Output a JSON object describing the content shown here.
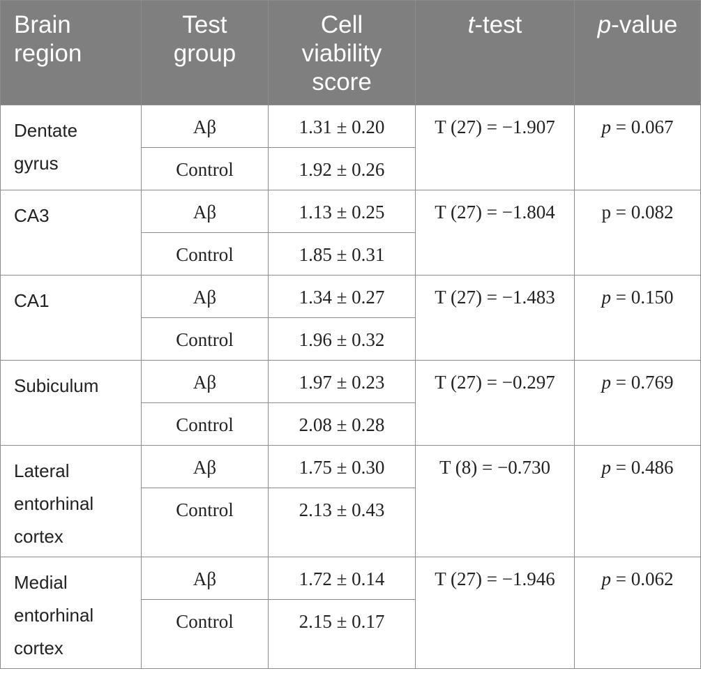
{
  "header": {
    "brain_region": [
      "Brain",
      "region"
    ],
    "test_group": [
      "Test",
      "group"
    ],
    "cell_viability": [
      "Cell",
      "viability",
      "score"
    ],
    "ttest_italic": "t",
    "ttest_rest": "-test",
    "pvalue_italic": "p",
    "pvalue_rest": "-value"
  },
  "rows": [
    {
      "region": [
        "Dentate",
        "gyrus"
      ],
      "ab_label": "Aβ",
      "ab_score": "1.31 ± 0.20",
      "control_label": "Control",
      "control_score": "1.92 ± 0.26",
      "ttest": "T (27) = −1.907",
      "p_symbol": "p",
      "p_rest": " = 0.067"
    },
    {
      "region": [
        "CA3"
      ],
      "ab_label": "Aβ",
      "ab_score": "1.13 ± 0.25",
      "control_label": "Control",
      "control_score": "1.85 ± 0.31",
      "ttest": "T (27) = −1.804",
      "p_symbol": "p",
      "p_rest": " = 0.082"
    },
    {
      "region": [
        "CA1"
      ],
      "ab_label": "Aβ",
      "ab_score": "1.34 ± 0.27",
      "control_label": "Control",
      "control_score": "1.96 ± 0.32",
      "ttest": "T (27) = −1.483",
      "p_symbol": "p",
      "p_rest": " = 0.150"
    },
    {
      "region": [
        "Subiculum"
      ],
      "ab_label": "Aβ",
      "ab_score": "1.97 ± 0.23",
      "control_label": "Control",
      "control_score": "2.08 ± 0.28",
      "ttest": "T (27) = −0.297",
      "p_symbol": "p",
      "p_rest": " = 0.769"
    },
    {
      "region": [
        "Lateral",
        "entorhinal",
        "cortex"
      ],
      "ab_label": "Aβ",
      "ab_score": "1.75 ± 0.30",
      "control_label": "Control",
      "control_score": "2.13 ± 0.43",
      "ttest": "T (8) = −0.730",
      "p_symbol": "p",
      "p_rest": " = 0.486"
    },
    {
      "region": [
        "Medial",
        "entorhinal",
        "cortex"
      ],
      "ab_label": "Aβ",
      "ab_score": "1.72 ± 0.14",
      "control_label": "Control",
      "control_score": "2.15 ± 0.17",
      "ttest": "T (27) = −1.946",
      "p_symbol": "p",
      "p_rest": " = 0.062"
    }
  ]
}
